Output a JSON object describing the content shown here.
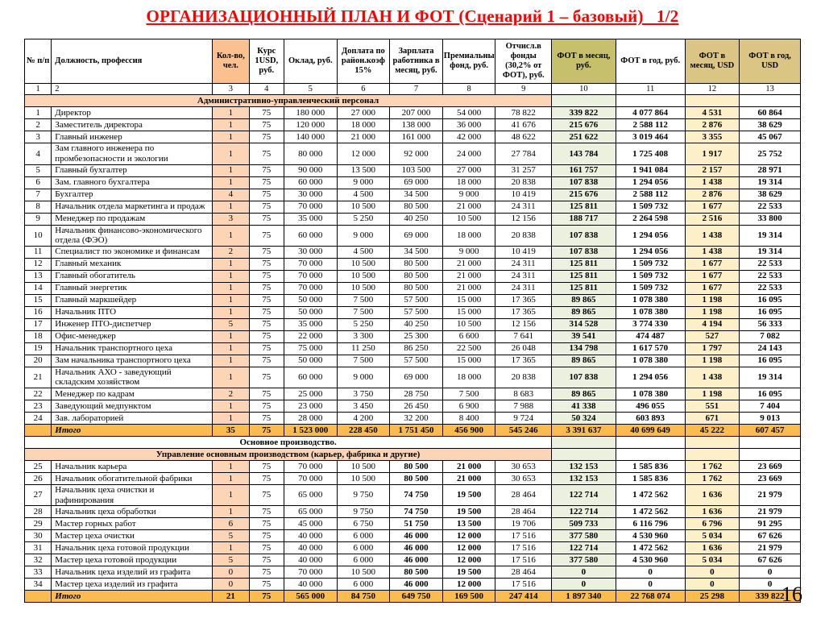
{
  "title": "ОРГАНИЗАЦИОННЫЙ ПЛАН И ФОТ (Сценарий 1 – базовый)   1/2",
  "page_number": "16",
  "colors": {
    "title_red": "#FF0000",
    "header_peach": "#FAC090",
    "cell_peach": "#FBD5B5",
    "header_olive": "#C6C06C",
    "header_tan": "#DBC584",
    "cell_green": "#EBF1DE",
    "cell_yellow": "#FDF0C9",
    "total_gold": "#FBBC4F"
  },
  "table": {
    "headers": [
      "№ п/п",
      "Должность, профессия",
      "Кол-во, чел.",
      "Курс 1USD, руб.",
      "Оклад, руб.",
      "Доплата по район.коэф 15%",
      "Зарплата работника в месяц, руб.",
      "Премиальный фонд, руб.",
      "Отчисл.в фонды (30,2% от ФОТ), руб.",
      "ФОТ в месяц, руб.",
      "ФОТ в год, руб.",
      "ФОТ в месяц, USD",
      "ФОТ в год, USD"
    ],
    "column_numbers": [
      "1",
      "2",
      "3",
      "4",
      "5",
      "6",
      "7",
      "8",
      "9",
      "10",
      "11",
      "12",
      "13"
    ],
    "rows": [
      {
        "t": "sec",
        "style": "peach",
        "label": "Административно-управленческий персонал"
      },
      {
        "t": "row",
        "sec": 1,
        "c": [
          "1",
          "Директор",
          "1",
          "75",
          "180 000",
          "27 000",
          "207 000",
          "54 000",
          "78 822",
          "339 822",
          "4 077 864",
          "4 531",
          "60 864"
        ]
      },
      {
        "t": "row",
        "sec": 1,
        "c": [
          "2",
          "Заместитель директора",
          "1",
          "75",
          "120 000",
          "18 000",
          "138 000",
          "36 000",
          "41 676",
          "215 676",
          "2 588 112",
          "2 876",
          "38 629"
        ]
      },
      {
        "t": "row",
        "sec": 1,
        "c": [
          "3",
          "Главный инженер",
          "1",
          "75",
          "140 000",
          "21 000",
          "161 000",
          "42 000",
          "48 622",
          "251 622",
          "3 019 464",
          "3 355",
          "45 067"
        ]
      },
      {
        "t": "row",
        "sec": 1,
        "c": [
          "4",
          "Зам главного инженера по промбезопасности и экологии",
          "1",
          "75",
          "80 000",
          "12 000",
          "92 000",
          "24 000",
          "27 784",
          "143 784",
          "1 725 408",
          "1 917",
          "25 752"
        ]
      },
      {
        "t": "row",
        "sec": 1,
        "c": [
          "5",
          "Главный бухгалтер",
          "1",
          "75",
          "90 000",
          "13 500",
          "103 500",
          "27 000",
          "31 257",
          "161 757",
          "1 941 084",
          "2 157",
          "28 971"
        ]
      },
      {
        "t": "row",
        "sec": 1,
        "c": [
          "6",
          "Зам. главного бухгалтера",
          "1",
          "75",
          "60 000",
          "9 000",
          "69 000",
          "18 000",
          "20 838",
          "107 838",
          "1 294 056",
          "1 438",
          "19 314"
        ]
      },
      {
        "t": "row",
        "sec": 1,
        "c": [
          "7",
          "Бухгалтер",
          "4",
          "75",
          "30 000",
          "4 500",
          "34 500",
          "9 000",
          "10 419",
          "215 676",
          "2 588 112",
          "2 876",
          "38 629"
        ]
      },
      {
        "t": "row",
        "sec": 1,
        "c": [
          "8",
          "Начальник отдела маркетинга и продаж",
          "1",
          "75",
          "70 000",
          "10 500",
          "80 500",
          "21 000",
          "24 311",
          "125 811",
          "1 509 732",
          "1 677",
          "22 533"
        ]
      },
      {
        "t": "row",
        "sec": 1,
        "c": [
          "9",
          "Менеджер по продажам",
          "3",
          "75",
          "35 000",
          "5 250",
          "40 250",
          "10 500",
          "12 156",
          "188 717",
          "2 264 598",
          "2 516",
          "33 800"
        ]
      },
      {
        "t": "row",
        "sec": 1,
        "c": [
          "10",
          "Начальник финансово-экономического отдела (ФЭО)",
          "1",
          "75",
          "60 000",
          "9 000",
          "69 000",
          "18 000",
          "20 838",
          "107 838",
          "1 294 056",
          "1 438",
          "19 314"
        ]
      },
      {
        "t": "row",
        "sec": 1,
        "c": [
          "11",
          "Специалист по экономике и финансам",
          "2",
          "75",
          "30 000",
          "4 500",
          "34 500",
          "9 000",
          "10 419",
          "107 838",
          "1 294 056",
          "1 438",
          "19 314"
        ]
      },
      {
        "t": "row",
        "sec": 1,
        "c": [
          "12",
          "Главный механик",
          "1",
          "75",
          "70 000",
          "10 500",
          "80 500",
          "21 000",
          "24 311",
          "125 811",
          "1 509 732",
          "1 677",
          "22 533"
        ]
      },
      {
        "t": "row",
        "sec": 1,
        "c": [
          "13",
          "Главный обогатитель",
          "1",
          "75",
          "70 000",
          "10 500",
          "80 500",
          "21 000",
          "24 311",
          "125 811",
          "1 509 732",
          "1 677",
          "22 533"
        ]
      },
      {
        "t": "row",
        "sec": 1,
        "c": [
          "14",
          "Главный энергетик",
          "1",
          "75",
          "70 000",
          "10 500",
          "80 500",
          "21 000",
          "24 311",
          "125 811",
          "1 509 732",
          "1 677",
          "22 533"
        ]
      },
      {
        "t": "row",
        "sec": 1,
        "c": [
          "15",
          "Главный маркшейдер",
          "1",
          "75",
          "50 000",
          "7 500",
          "57 500",
          "15 000",
          "17 365",
          "89 865",
          "1 078 380",
          "1 198",
          "16 095"
        ]
      },
      {
        "t": "row",
        "sec": 1,
        "c": [
          "16",
          "Начальник ПТО",
          "1",
          "75",
          "50 000",
          "7 500",
          "57 500",
          "15 000",
          "17 365",
          "89 865",
          "1 078 380",
          "1 198",
          "16 095"
        ]
      },
      {
        "t": "row",
        "sec": 1,
        "c": [
          "17",
          "Инженер ПТО-диспетчер",
          "5",
          "75",
          "35 000",
          "5 250",
          "40 250",
          "10 500",
          "12 156",
          "314 528",
          "3 774 330",
          "4 194",
          "56 333"
        ]
      },
      {
        "t": "row",
        "sec": 1,
        "c": [
          "18",
          "Офис-менеджер",
          "1",
          "75",
          "22 000",
          "3 300",
          "25 300",
          "6 600",
          "7 641",
          "39 541",
          "474 487",
          "527",
          "7 082"
        ]
      },
      {
        "t": "row",
        "sec": 1,
        "c": [
          "19",
          "Начальник транспортного цеха",
          "1",
          "75",
          "75 000",
          "11 250",
          "86 250",
          "22 500",
          "26 048",
          "134 798",
          "1 617 570",
          "1 797",
          "24 143"
        ]
      },
      {
        "t": "row",
        "sec": 1,
        "c": [
          "20",
          "Зам начальника транспортного цеха",
          "1",
          "75",
          "50 000",
          "7 500",
          "57 500",
          "15 000",
          "17 365",
          "89 865",
          "1 078 380",
          "1 198",
          "16 095"
        ]
      },
      {
        "t": "row",
        "sec": 1,
        "c": [
          "21",
          "Начальник АХО - заведующий складским хозяйством",
          "1",
          "75",
          "60 000",
          "9 000",
          "69 000",
          "18 000",
          "20 838",
          "107 838",
          "1 294 056",
          "1 438",
          "19 314"
        ]
      },
      {
        "t": "row",
        "sec": 1,
        "c": [
          "22",
          "Менеджер по кадрам",
          "2",
          "75",
          "25 000",
          "3 750",
          "28 750",
          "7 500",
          "8 683",
          "89 865",
          "1 078 380",
          "1 198",
          "16 095"
        ]
      },
      {
        "t": "row",
        "sec": 1,
        "c": [
          "23",
          "Заведующий медпунктом",
          "1",
          "75",
          "23 000",
          "3 450",
          "26 450",
          "6 900",
          "7 988",
          "41 338",
          "496 055",
          "551",
          "7 404"
        ]
      },
      {
        "t": "row",
        "sec": 1,
        "c": [
          "24",
          "Зав. лабораторией",
          "1",
          "75",
          "28 000",
          "4 200",
          "32 200",
          "8 400",
          "9 724",
          "50 324",
          "603 893",
          "671",
          "9 013"
        ]
      },
      {
        "t": "total",
        "c": [
          "",
          "Итого",
          "35",
          "75",
          "1 523 000",
          "228 450",
          "1 751 450",
          "456 900",
          "545 246",
          "3 391 637",
          "40 699 649",
          "45 222",
          "607 457"
        ]
      },
      {
        "t": "sec",
        "style": "plain",
        "label": "Основное производство."
      },
      {
        "t": "sec",
        "style": "peach",
        "label": "Управление основным производством (карьер, фабрика и другие)"
      },
      {
        "t": "row",
        "sec": 2,
        "c": [
          "25",
          "Начальник карьера",
          "1",
          "75",
          "70 000",
          "10 500",
          "80 500",
          "21 000",
          "30 653",
          "132 153",
          "1 585 836",
          "1 762",
          "23 669"
        ]
      },
      {
        "t": "row",
        "sec": 2,
        "c": [
          "26",
          "Начальник обогатительной фабрики",
          "1",
          "75",
          "70 000",
          "10 500",
          "80 500",
          "21 000",
          "30 653",
          "132 153",
          "1 585 836",
          "1 762",
          "23 669"
        ]
      },
      {
        "t": "row",
        "sec": 2,
        "c": [
          "27",
          "Начальник цеха очистки и рафинирования",
          "1",
          "75",
          "65 000",
          "9 750",
          "74 750",
          "19 500",
          "28 464",
          "122 714",
          "1 472 562",
          "1 636",
          "21 979"
        ]
      },
      {
        "t": "row",
        "sec": 2,
        "c": [
          "28",
          "Начальник цеха обработки",
          "1",
          "75",
          "65 000",
          "9 750",
          "74 750",
          "19 500",
          "28 464",
          "122 714",
          "1 472 562",
          "1 636",
          "21 979"
        ]
      },
      {
        "t": "row",
        "sec": 2,
        "c": [
          "29",
          "Мастер горных работ",
          "6",
          "75",
          "45 000",
          "6 750",
          "51 750",
          "13 500",
          "19 706",
          "509 733",
          "6 116 796",
          "6 796",
          "91 295"
        ]
      },
      {
        "t": "row",
        "sec": 2,
        "c": [
          "30",
          "Мастер цеха очистки",
          "5",
          "75",
          "40 000",
          "6 000",
          "46 000",
          "12 000",
          "17 516",
          "377 580",
          "4 530 960",
          "5 034",
          "67 626"
        ]
      },
      {
        "t": "row",
        "sec": 2,
        "c": [
          "31",
          "Начальник цеха готовой продукции",
          "1",
          "75",
          "40 000",
          "6 000",
          "46 000",
          "12 000",
          "17 516",
          "122 714",
          "1 472 562",
          "1 636",
          "21 979"
        ]
      },
      {
        "t": "row",
        "sec": 2,
        "c": [
          "32",
          "Мастер цеха готовой продукции",
          "5",
          "75",
          "40 000",
          "6 000",
          "46 000",
          "12 000",
          "17 516",
          "377 580",
          "4 530 960",
          "5 034",
          "67 626"
        ]
      },
      {
        "t": "row",
        "sec": 2,
        "c": [
          "33",
          "Начальник цеха изделий из графита",
          "0",
          "75",
          "70 000",
          "10 500",
          "80 500",
          "19 500",
          "28 464",
          "0",
          "0",
          "0",
          "0"
        ]
      },
      {
        "t": "row",
        "sec": 2,
        "c": [
          "34",
          "Мастер цеха изделий из графита",
          "0",
          "75",
          "40 000",
          "6 000",
          "46 000",
          "12 000",
          "17 516",
          "0",
          "0",
          "0",
          "0"
        ]
      },
      {
        "t": "total",
        "c": [
          "",
          "Итого",
          "21",
          "75",
          "565 000",
          "84 750",
          "649 750",
          "169 500",
          "247 414",
          "1 897 340",
          "22 768 074",
          "25 298",
          "339 822"
        ]
      }
    ]
  }
}
